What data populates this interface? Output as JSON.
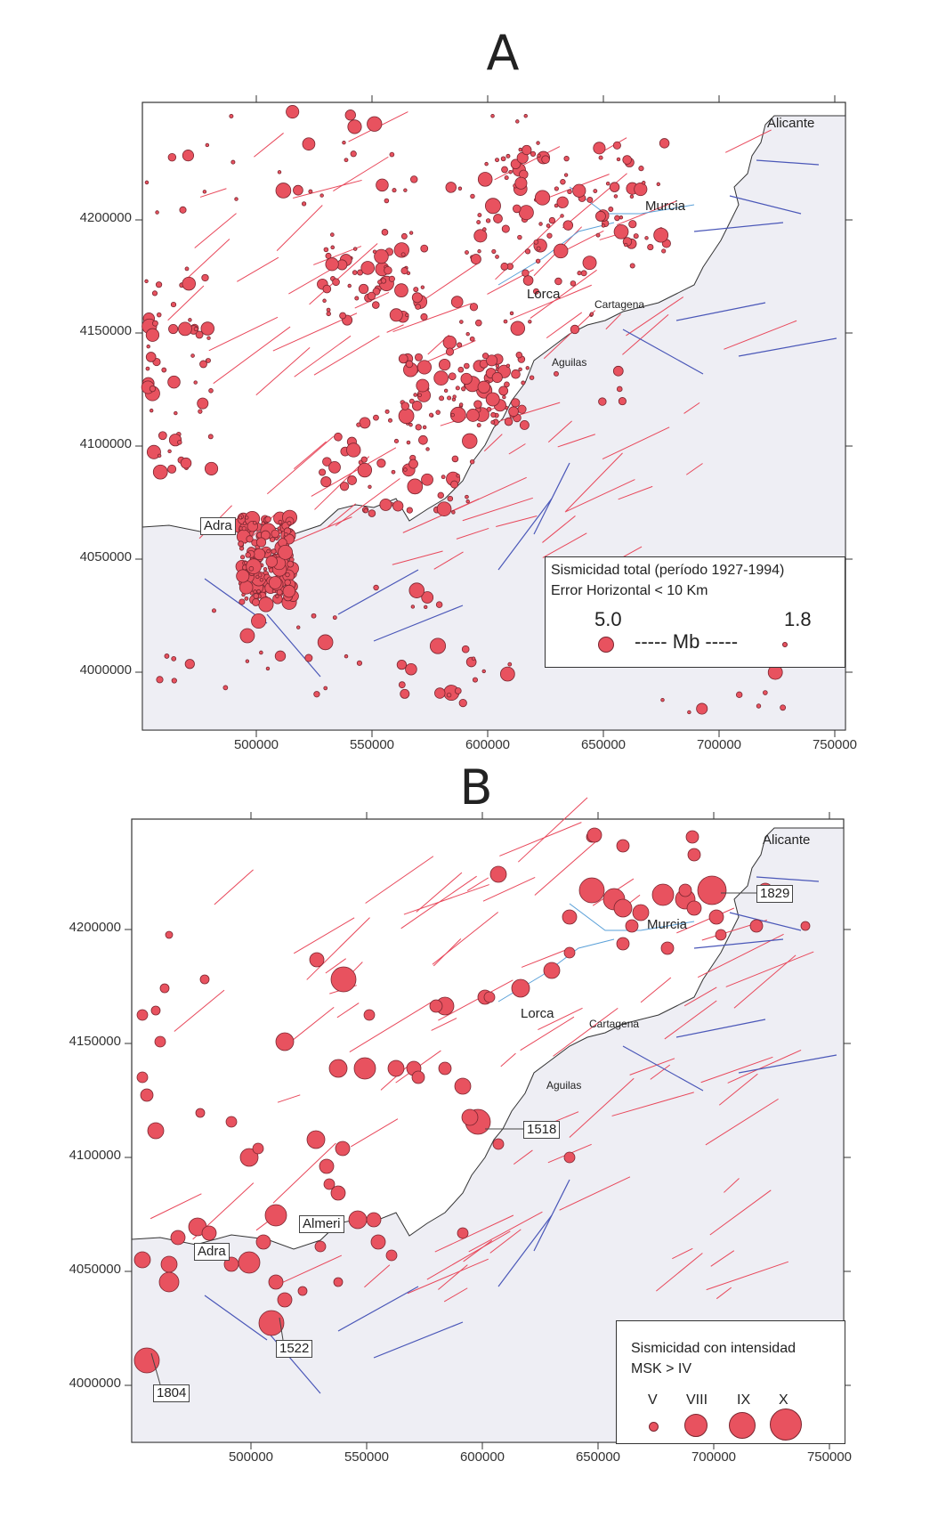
{
  "colors": {
    "quake_fill": "#e8525f",
    "quake_stroke": "#7a2630",
    "sea": "#eeeef4",
    "fault_red": "#e8475a",
    "fault_blue": "#4a57b8",
    "river": "#5aa0d8",
    "coast": "#333333"
  },
  "panel_a": {
    "letter": "A",
    "y_ticks": [
      "4200000",
      "4150000",
      "4100000",
      "4050000",
      "4000000"
    ],
    "x_ticks": [
      "500000",
      "550000",
      "600000",
      "650000",
      "700000",
      "750000"
    ],
    "cities": {
      "alicante": "Alicante",
      "murcia": "Murcia",
      "lorca": "Lorca",
      "cartagena": "Cartagena",
      "aguilas": "Aguilas",
      "adra": "Adra"
    },
    "legend": {
      "title": "Sismicidad total (período 1927-1994)",
      "subtitle": "Error Horizontal < 10 Km",
      "mag_max": "5.0",
      "mag_min": "1.8",
      "mag_label": "----- Mb -----"
    }
  },
  "panel_b": {
    "letter": "B",
    "y_ticks": [
      "4200000",
      "4150000",
      "4100000",
      "4050000",
      "4000000"
    ],
    "x_ticks": [
      "500000",
      "550000",
      "600000",
      "650000",
      "700000",
      "750000"
    ],
    "cities": {
      "alicante": "Alicante",
      "murcia": "Murcia",
      "lorca": "Lorca",
      "cartagena": "Cartagena",
      "aguilas": "Aguilas",
      "adra": "Adra",
      "almeria": "Almeri"
    },
    "events": {
      "e1829": "1829",
      "e1518": "1518",
      "e1522": "1522",
      "e1804": "1804"
    },
    "legend": {
      "title": "Sismicidad con intensidad",
      "subtitle": "MSK > IV",
      "classes": [
        "V",
        "VIII",
        "IX",
        "X"
      ]
    }
  }
}
